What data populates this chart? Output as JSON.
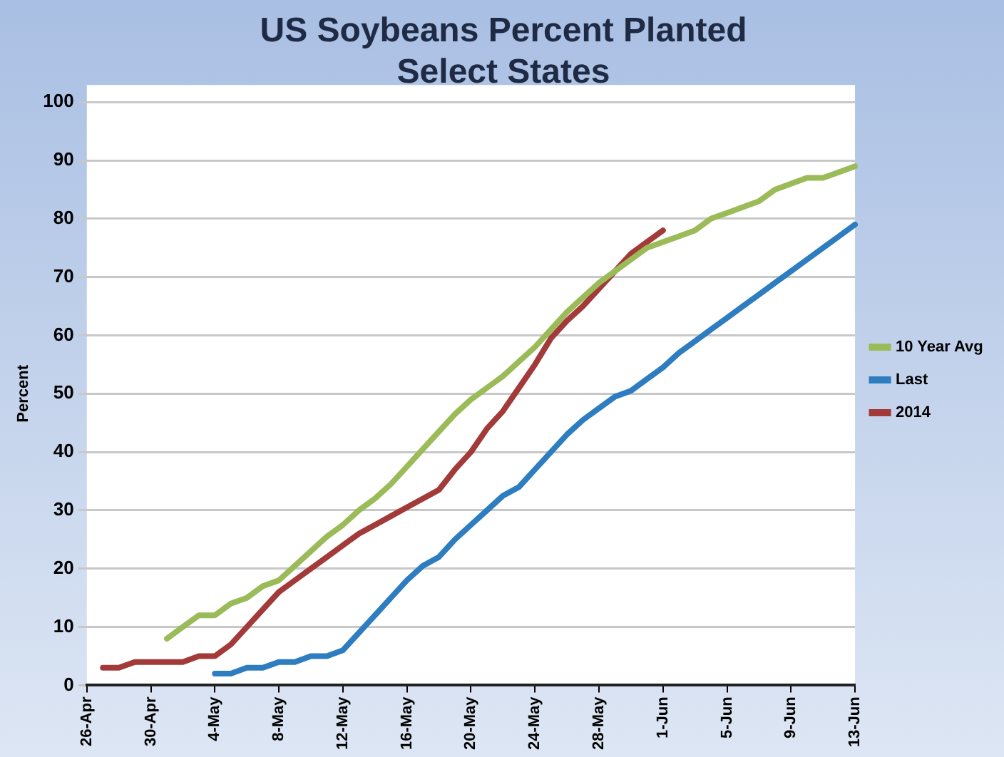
{
  "chart_data": {
    "type": "line",
    "title": "US Soybeans Percent Planted\nSelect States",
    "ylabel": "Percent",
    "categories": [
      "26-Apr",
      null,
      null,
      null,
      "30-Apr",
      null,
      null,
      null,
      "4-May",
      null,
      null,
      null,
      "8-May",
      null,
      null,
      null,
      "12-May",
      null,
      null,
      null,
      "16-May",
      null,
      null,
      null,
      "20-May",
      null,
      null,
      null,
      "24-May",
      null,
      null,
      null,
      "28-May",
      null,
      null,
      null,
      "1-Jun",
      null,
      null,
      null,
      "5-Jun",
      null,
      null,
      null,
      "9-Jun",
      null,
      null,
      null,
      "13-Jun"
    ],
    "series": [
      {
        "name": "10 Year Avg",
        "color": "#9bbb59",
        "values": [
          null,
          null,
          null,
          null,
          null,
          8,
          10,
          12,
          12,
          14,
          15,
          17,
          18,
          20.5,
          23,
          25.5,
          27.5,
          30,
          32,
          34.5,
          37.5,
          40.5,
          43.5,
          46.5,
          49,
          51,
          53,
          55.5,
          58,
          61,
          64,
          66.5,
          69,
          71,
          73,
          75,
          76,
          77,
          78,
          80,
          81,
          82,
          83,
          85,
          86,
          87,
          87,
          88,
          89
        ]
      },
      {
        "name": "Last",
        "color": "#2e7dc0",
        "values": [
          null,
          null,
          null,
          null,
          null,
          null,
          null,
          null,
          2,
          2,
          3,
          3,
          4,
          4,
          5,
          5,
          6,
          9,
          12,
          15,
          18,
          20.5,
          22,
          25,
          27.5,
          30,
          32.5,
          34,
          37,
          40,
          43,
          45.5,
          47.5,
          49.5,
          50.5,
          52.5,
          54.5,
          57,
          59,
          61,
          63,
          65,
          67,
          69,
          71,
          73,
          75,
          77,
          79
        ]
      },
      {
        "name": "2014",
        "color": "#a33a3a",
        "values": [
          null,
          3,
          3,
          4,
          4,
          4,
          4,
          5,
          5,
          7,
          10,
          13,
          16,
          18,
          20,
          22,
          24,
          26,
          27.5,
          29,
          30.5,
          32,
          33.5,
          37,
          40,
          44,
          47,
          51,
          55,
          59.5,
          62.5,
          65,
          68,
          71,
          74,
          76,
          78,
          null,
          null,
          null,
          null,
          null,
          null,
          null,
          null,
          null,
          null,
          null,
          null
        ]
      }
    ],
    "ylim": [
      0,
      100
    ],
    "yticks": [
      0,
      10,
      20,
      30,
      40,
      50,
      60,
      70,
      80,
      90,
      100
    ],
    "grid": "y",
    "legend": "right",
    "marker": "none",
    "line_style": "solid"
  }
}
